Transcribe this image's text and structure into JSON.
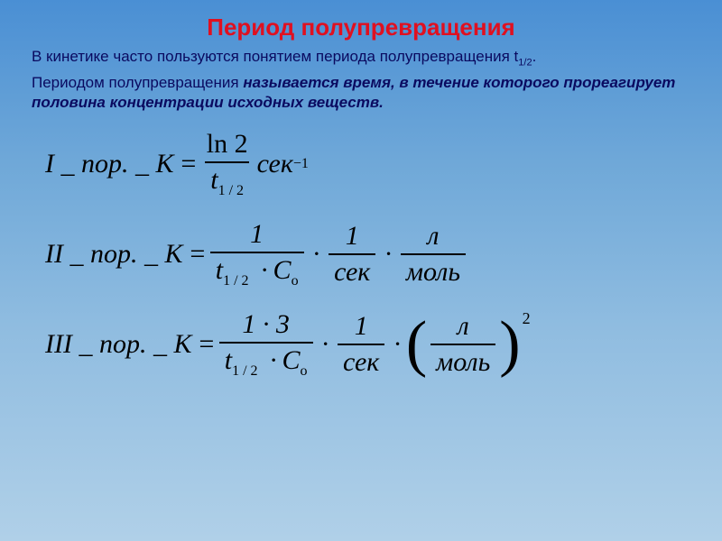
{
  "title": "Период полупревращения",
  "intro_prefix": "В кинетике часто пользуются понятием периода полупревращения t",
  "intro_sub": "1/2",
  "intro_suffix": ".",
  "def_prefix": "Периодом полупревращения ",
  "def_bold": "называется время, в течение которого прореагирует половина концентрации исходных веществ.",
  "f1_label": "I _ пор. _ K",
  "f2_label": "II _ пор. _ K",
  "f3_label": "III _ пор. _ K",
  "eq": "=",
  "ln2": "ln 2",
  "t12": "t",
  "t12_sub": "1 / 2",
  "sek": "сек",
  "neg1": "−1",
  "one": "1",
  "C_o": "C",
  "o_sub": "o",
  "l": "л",
  "mol": "моль",
  "one_three": "1 · 3",
  "sq": "2",
  "dot": "·",
  "colors": {
    "title": "#e01020",
    "intro": "#0a0a60",
    "formula": "#000000",
    "bg_top": "#4a8fd4",
    "bg_bottom": "#b0d0e8"
  }
}
